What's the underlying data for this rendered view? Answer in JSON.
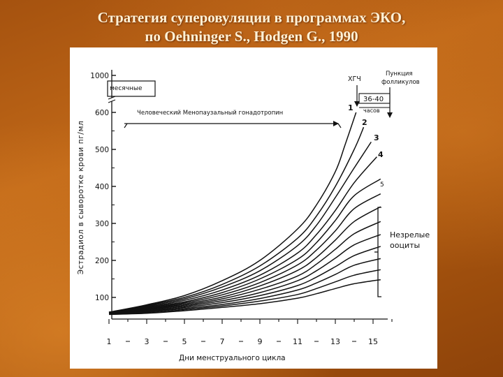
{
  "slide": {
    "title_line1": "Стратегия суперовуляции в программах ЭКО,",
    "title_line2": "по Oehninger S., Hodgen G., 1990"
  },
  "colors": {
    "background": "#b45e13",
    "title": "#fff1d6",
    "plot_ink": "#111111"
  },
  "chart_data": {
    "type": "line",
    "title": "",
    "xlabel": "Дни менструального цикла",
    "ylabel": "Эстрадиол в сыворотке крови пг/мл",
    "x_ticks": [
      "1",
      "3",
      "5",
      "7",
      "9",
      "11",
      "13",
      "15"
    ],
    "xlim": [
      1,
      16
    ],
    "y_ticks": [
      "100",
      "200",
      "300",
      "400",
      "500",
      "600",
      "1000"
    ],
    "y_axis_break_between": [
      600,
      1000
    ],
    "annotations": {
      "menses": "месячные",
      "hmg": "Человеческий Менопаузальный гонадотропин",
      "hcg": "ХГЧ",
      "puncture": "Пункция фолликулов",
      "interval": "36-40",
      "hours": "часов",
      "immature": "Незрелые ооциты"
    },
    "curve_labels": [
      "1",
      "2",
      "3",
      "4",
      "5"
    ],
    "series": [
      {
        "name": "1",
        "x": [
          1,
          3,
          5,
          7,
          9,
          11,
          12,
          13,
          13.5,
          14.1
        ],
        "y": [
          60,
          80,
          105,
          145,
          200,
          285,
          350,
          440,
          510,
          600
        ]
      },
      {
        "name": "2",
        "x": [
          1,
          3,
          5,
          7,
          9,
          11,
          12,
          13,
          14,
          14.5
        ],
        "y": [
          60,
          78,
          100,
          135,
          185,
          260,
          320,
          400,
          500,
          560
        ]
      },
      {
        "name": "3",
        "x": [
          1,
          3,
          5,
          7,
          9,
          11,
          12,
          13,
          14,
          14.9
        ],
        "y": [
          60,
          76,
          96,
          128,
          172,
          240,
          295,
          370,
          450,
          520
        ]
      },
      {
        "name": "4",
        "x": [
          1,
          3,
          5,
          7,
          9,
          11,
          12,
          13,
          14,
          15.2
        ],
        "y": [
          60,
          74,
          92,
          120,
          160,
          220,
          270,
          335,
          410,
          480
        ]
      },
      {
        "name": "5",
        "x": [
          1,
          3,
          5,
          7,
          9,
          11,
          12,
          13,
          14,
          15.4
        ],
        "y": [
          58,
          72,
          88,
          113,
          150,
          203,
          248,
          308,
          375,
          420
        ]
      },
      {
        "name": "",
        "x": [
          1,
          3,
          5,
          7,
          9,
          11,
          12,
          13,
          14,
          15.4
        ],
        "y": [
          58,
          70,
          85,
          107,
          140,
          188,
          228,
          280,
          340,
          380
        ]
      },
      {
        "name": "",
        "x": [
          1,
          3,
          5,
          7,
          9,
          11,
          12,
          13,
          14,
          15.4
        ],
        "y": [
          57,
          68,
          82,
          101,
          131,
          173,
          208,
          255,
          305,
          345
        ]
      },
      {
        "name": "",
        "x": [
          1,
          3,
          5,
          7,
          9,
          11,
          12,
          13,
          14,
          15.4
        ],
        "y": [
          57,
          66,
          79,
          96,
          122,
          158,
          190,
          230,
          272,
          305
        ]
      },
      {
        "name": "",
        "x": [
          1,
          3,
          5,
          7,
          9,
          11,
          12,
          13,
          14,
          15.4
        ],
        "y": [
          56,
          64,
          76,
          91,
          113,
          145,
          172,
          206,
          242,
          270
        ]
      },
      {
        "name": "",
        "x": [
          1,
          3,
          5,
          7,
          9,
          11,
          12,
          13,
          14,
          15.4
        ],
        "y": [
          56,
          62,
          73,
          86,
          105,
          132,
          155,
          183,
          213,
          238
        ]
      },
      {
        "name": "",
        "x": [
          1,
          3,
          5,
          7,
          9,
          11,
          12,
          13,
          14,
          15.4
        ],
        "y": [
          55,
          60,
          70,
          81,
          97,
          120,
          139,
          162,
          187,
          205
        ]
      },
      {
        "name": "",
        "x": [
          1,
          3,
          5,
          7,
          9,
          11,
          12,
          13,
          14,
          15.4
        ],
        "y": [
          55,
          58,
          67,
          77,
          90,
          108,
          124,
          142,
          160,
          175
        ]
      },
      {
        "name": "",
        "x": [
          1,
          3,
          5,
          7,
          9,
          11,
          12,
          13,
          14,
          15.4
        ],
        "y": [
          54,
          57,
          64,
          73,
          83,
          98,
          110,
          124,
          137,
          148
        ]
      }
    ]
  }
}
